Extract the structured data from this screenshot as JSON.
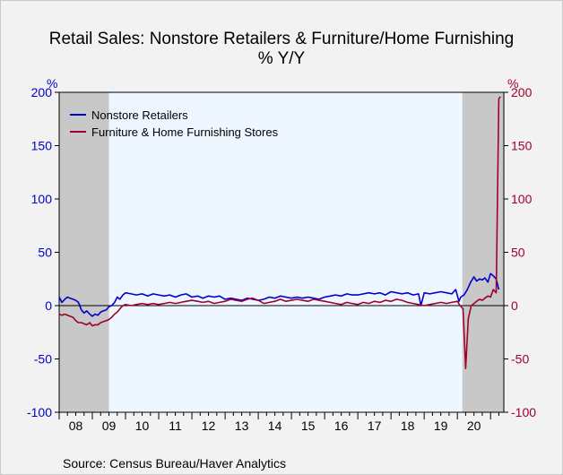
{
  "chart_data": {
    "type": "line",
    "title": "Retail Sales: Nonstore Retailers & Furniture/Home Furnishing",
    "subtitle": "% Y/Y",
    "ylabel_left": "%",
    "ylabel_right": "%",
    "ylim": [
      -100,
      200
    ],
    "yticks": [
      -100,
      -50,
      0,
      50,
      100,
      150,
      200
    ],
    "xlim": [
      2008.0,
      2021.4
    ],
    "xtick_labels": [
      "08",
      "09",
      "10",
      "11",
      "12",
      "13",
      "14",
      "15",
      "16",
      "17",
      "18",
      "19",
      "20"
    ],
    "recessions": [
      [
        2008.0,
        2009.5
      ],
      [
        2020.15,
        2021.4
      ]
    ],
    "legend_position": "top-left",
    "grid": false,
    "source": "Source:   Census Bureau/Haver Analytics",
    "series": [
      {
        "name": "Nonstore Retailers",
        "color": "#0000cc",
        "axis": "left",
        "points": [
          [
            2008.0,
            8
          ],
          [
            2008.08,
            3
          ],
          [
            2008.17,
            6
          ],
          [
            2008.25,
            8
          ],
          [
            2008.33,
            7
          ],
          [
            2008.42,
            6
          ],
          [
            2008.5,
            5
          ],
          [
            2008.58,
            3
          ],
          [
            2008.67,
            -4
          ],
          [
            2008.75,
            -7
          ],
          [
            2008.83,
            -5
          ],
          [
            2008.92,
            -8
          ],
          [
            2009.0,
            -10
          ],
          [
            2009.08,
            -8
          ],
          [
            2009.17,
            -9
          ],
          [
            2009.25,
            -6
          ],
          [
            2009.33,
            -5
          ],
          [
            2009.42,
            -4
          ],
          [
            2009.5,
            -1
          ],
          [
            2009.58,
            0
          ],
          [
            2009.67,
            3
          ],
          [
            2009.75,
            8
          ],
          [
            2009.83,
            6
          ],
          [
            2009.92,
            10
          ],
          [
            2010.0,
            12
          ],
          [
            2010.17,
            11
          ],
          [
            2010.33,
            10
          ],
          [
            2010.5,
            11
          ],
          [
            2010.67,
            9
          ],
          [
            2010.83,
            11
          ],
          [
            2011.0,
            10
          ],
          [
            2011.17,
            9
          ],
          [
            2011.33,
            10
          ],
          [
            2011.5,
            8
          ],
          [
            2011.67,
            10
          ],
          [
            2011.83,
            11
          ],
          [
            2012.0,
            8
          ],
          [
            2012.17,
            9
          ],
          [
            2012.33,
            7
          ],
          [
            2012.5,
            9
          ],
          [
            2012.67,
            8
          ],
          [
            2012.83,
            9
          ],
          [
            2013.0,
            6
          ],
          [
            2013.17,
            7
          ],
          [
            2013.33,
            6
          ],
          [
            2013.5,
            5
          ],
          [
            2013.67,
            7
          ],
          [
            2013.83,
            6
          ],
          [
            2014.0,
            5
          ],
          [
            2014.17,
            6
          ],
          [
            2014.33,
            8
          ],
          [
            2014.5,
            7
          ],
          [
            2014.67,
            9
          ],
          [
            2014.83,
            8
          ],
          [
            2015.0,
            7
          ],
          [
            2015.17,
            8
          ],
          [
            2015.33,
            7
          ],
          [
            2015.5,
            8
          ],
          [
            2015.67,
            7
          ],
          [
            2015.83,
            6
          ],
          [
            2016.0,
            8
          ],
          [
            2016.17,
            9
          ],
          [
            2016.33,
            10
          ],
          [
            2016.5,
            9
          ],
          [
            2016.67,
            11
          ],
          [
            2016.83,
            10
          ],
          [
            2017.0,
            10
          ],
          [
            2017.17,
            11
          ],
          [
            2017.33,
            12
          ],
          [
            2017.5,
            11
          ],
          [
            2017.67,
            12
          ],
          [
            2017.83,
            10
          ],
          [
            2018.0,
            13
          ],
          [
            2018.17,
            12
          ],
          [
            2018.33,
            11
          ],
          [
            2018.5,
            12
          ],
          [
            2018.67,
            10
          ],
          [
            2018.83,
            11
          ],
          [
            2018.9,
            0
          ],
          [
            2019.0,
            12
          ],
          [
            2019.17,
            11
          ],
          [
            2019.33,
            12
          ],
          [
            2019.5,
            13
          ],
          [
            2019.67,
            12
          ],
          [
            2019.83,
            11
          ],
          [
            2019.95,
            15
          ],
          [
            2020.05,
            4
          ],
          [
            2020.1,
            8
          ],
          [
            2020.2,
            10
          ],
          [
            2020.3,
            15
          ],
          [
            2020.4,
            22
          ],
          [
            2020.5,
            27
          ],
          [
            2020.58,
            23
          ],
          [
            2020.67,
            25
          ],
          [
            2020.75,
            24
          ],
          [
            2020.83,
            26
          ],
          [
            2020.92,
            22
          ],
          [
            2021.0,
            30
          ],
          [
            2021.08,
            28
          ],
          [
            2021.17,
            25
          ],
          [
            2021.25,
            15
          ]
        ]
      },
      {
        "name": "Furniture & Home Furnishing Stores",
        "color": "#a0002a",
        "axis": "right",
        "points": [
          [
            2008.0,
            -8
          ],
          [
            2008.08,
            -9
          ],
          [
            2008.17,
            -8
          ],
          [
            2008.25,
            -9
          ],
          [
            2008.33,
            -10
          ],
          [
            2008.42,
            -11
          ],
          [
            2008.5,
            -14
          ],
          [
            2008.58,
            -16
          ],
          [
            2008.67,
            -16
          ],
          [
            2008.75,
            -17
          ],
          [
            2008.83,
            -18
          ],
          [
            2008.92,
            -16
          ],
          [
            2009.0,
            -19
          ],
          [
            2009.08,
            -18
          ],
          [
            2009.17,
            -18
          ],
          [
            2009.25,
            -16
          ],
          [
            2009.33,
            -15
          ],
          [
            2009.42,
            -14
          ],
          [
            2009.5,
            -13
          ],
          [
            2009.58,
            -11
          ],
          [
            2009.67,
            -8
          ],
          [
            2009.75,
            -6
          ],
          [
            2009.83,
            -3
          ],
          [
            2009.92,
            0
          ],
          [
            2010.0,
            1
          ],
          [
            2010.17,
            0
          ],
          [
            2010.33,
            1
          ],
          [
            2010.5,
            2
          ],
          [
            2010.67,
            1
          ],
          [
            2010.83,
            2
          ],
          [
            2011.0,
            1
          ],
          [
            2011.17,
            2
          ],
          [
            2011.33,
            3
          ],
          [
            2011.5,
            2
          ],
          [
            2011.67,
            3
          ],
          [
            2011.83,
            4
          ],
          [
            2012.0,
            5
          ],
          [
            2012.17,
            4
          ],
          [
            2012.33,
            3
          ],
          [
            2012.5,
            4
          ],
          [
            2012.67,
            2
          ],
          [
            2012.83,
            3
          ],
          [
            2013.0,
            4
          ],
          [
            2013.17,
            6
          ],
          [
            2013.33,
            5
          ],
          [
            2013.5,
            4
          ],
          [
            2013.67,
            6
          ],
          [
            2013.83,
            7
          ],
          [
            2014.0,
            5
          ],
          [
            2014.17,
            2
          ],
          [
            2014.33,
            3
          ],
          [
            2014.5,
            4
          ],
          [
            2014.67,
            6
          ],
          [
            2014.83,
            4
          ],
          [
            2015.0,
            5
          ],
          [
            2015.17,
            6
          ],
          [
            2015.33,
            5
          ],
          [
            2015.5,
            4
          ],
          [
            2015.67,
            6
          ],
          [
            2015.83,
            5
          ],
          [
            2016.0,
            4
          ],
          [
            2016.17,
            3
          ],
          [
            2016.33,
            2
          ],
          [
            2016.5,
            1
          ],
          [
            2016.67,
            3
          ],
          [
            2016.83,
            2
          ],
          [
            2017.0,
            1
          ],
          [
            2017.17,
            3
          ],
          [
            2017.33,
            2
          ],
          [
            2017.5,
            4
          ],
          [
            2017.67,
            3
          ],
          [
            2017.83,
            5
          ],
          [
            2018.0,
            4
          ],
          [
            2018.17,
            6
          ],
          [
            2018.33,
            5
          ],
          [
            2018.5,
            3
          ],
          [
            2018.67,
            2
          ],
          [
            2018.83,
            1
          ],
          [
            2019.0,
            0
          ],
          [
            2019.17,
            1
          ],
          [
            2019.33,
            2
          ],
          [
            2019.5,
            3
          ],
          [
            2019.67,
            2
          ],
          [
            2019.83,
            3
          ],
          [
            2020.0,
            4
          ],
          [
            2020.08,
            0
          ],
          [
            2020.17,
            -3
          ],
          [
            2020.25,
            -59
          ],
          [
            2020.33,
            -12
          ],
          [
            2020.42,
            0
          ],
          [
            2020.5,
            2
          ],
          [
            2020.58,
            4
          ],
          [
            2020.67,
            6
          ],
          [
            2020.75,
            5
          ],
          [
            2020.83,
            7
          ],
          [
            2020.92,
            9
          ],
          [
            2021.0,
            8
          ],
          [
            2021.08,
            15
          ],
          [
            2021.17,
            12
          ],
          [
            2021.25,
            194
          ],
          [
            2021.3,
            196
          ]
        ]
      }
    ]
  }
}
